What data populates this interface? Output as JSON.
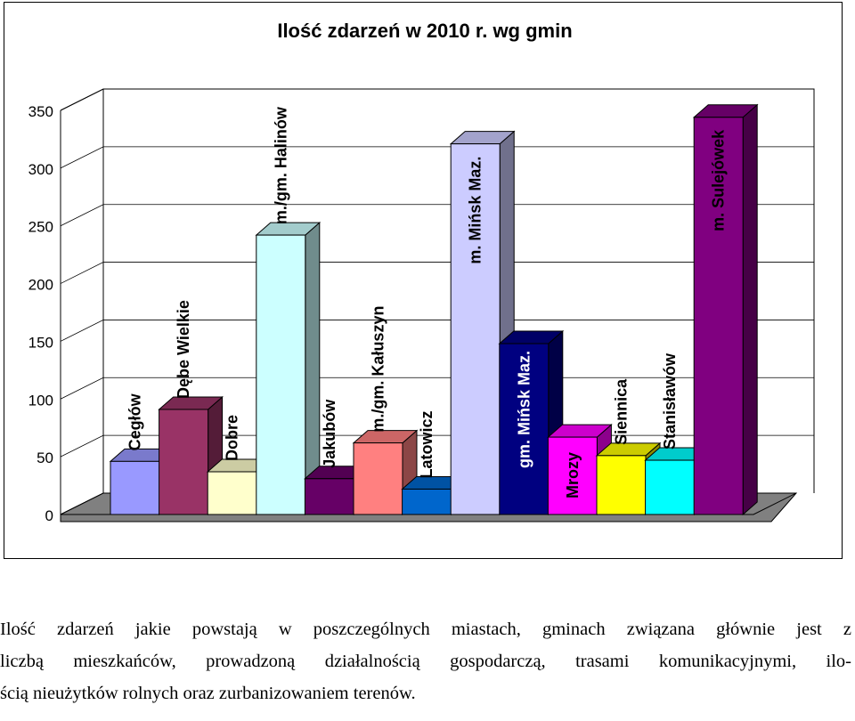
{
  "chart_data": {
    "type": "bar",
    "title": "Ilość zdarzeń w 2010 r. wg gmin",
    "xlabel": "",
    "ylabel": "",
    "ylim": [
      0,
      350
    ],
    "yticks": [
      0,
      50,
      100,
      150,
      200,
      250,
      300,
      350
    ],
    "grid": true,
    "legend": "none",
    "categories": [
      "Cegłów",
      "Dębe Wielkie",
      "Dobre",
      "m./gm. Halinów",
      "Jakubów",
      "m./gm. Kałuszyn",
      "Latowicz",
      "m. Mińsk Maz.",
      "gm. Mińsk Maz.",
      "Mrozy",
      "Siennica",
      "Stanisławów",
      "m. Sulejówek"
    ],
    "values": [
      46,
      91,
      37,
      242,
      31,
      62,
      22,
      321,
      148,
      67,
      51,
      47,
      344
    ],
    "colors": [
      "#9999ff",
      "#993366",
      "#ffffcc",
      "#ccffff",
      "#660066",
      "#ff8080",
      "#0066cc",
      "#ccccff",
      "#000080",
      "#ff00ff",
      "#ffff00",
      "#00ffff",
      "#800080"
    ]
  },
  "caption": {
    "lines": [
      "Ilość zdarzeń jakie powstają w poszczególnych miastach, gminach związana głównie jest z",
      "liczbą mieszkańców, prowadzoną działalnością gospodarczą, trasami komunikacyjnymi, ilo-",
      "ścią nieużytków rolnych oraz zurbanizowaniem terenów."
    ]
  }
}
